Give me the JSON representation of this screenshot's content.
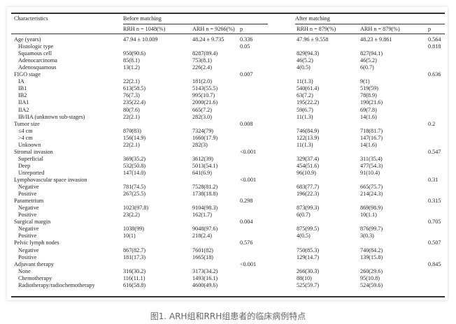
{
  "table": {
    "headers": {
      "characteristics": "Characteristics",
      "before": "Before matching",
      "after": "After matching",
      "sub": [
        "RRH n = 1048(%)",
        "ARH n = 9266(%)",
        "p",
        "RRH n = 879(%)",
        "ARH n = 879(%)",
        "p"
      ]
    },
    "rows": [
      {
        "label": "Age (years)",
        "level": 0,
        "v": [
          "47.94 ± 10.009",
          "48.24 ± 9.735",
          "0.336",
          "47.96 ± 9.558",
          "48.23 ± 9.861",
          "0.564"
        ]
      },
      {
        "label": "Histologic type",
        "level": 1,
        "v": [
          "",
          "",
          "0.05",
          "",
          "",
          "0.818"
        ]
      },
      {
        "label": "Squamous cell",
        "level": 1,
        "v": [
          "950(90.6)",
          "8287(89.4)",
          "",
          "829(94.3)",
          "827(94.1)",
          ""
        ]
      },
      {
        "label": "Adenocarcinoma",
        "level": 1,
        "v": [
          "85(8.1)",
          "753(8.1)",
          "",
          "46(5.2)",
          "46(5.2)",
          ""
        ]
      },
      {
        "label": "Adenosquamous",
        "level": 1,
        "v": [
          "13(1.2)",
          "226(2.4)",
          "",
          "4(0.5)",
          "6(0.7)",
          ""
        ]
      },
      {
        "label": "FIGO stage",
        "level": 0,
        "v": [
          "",
          "",
          "0.007",
          "",
          "",
          "0.636"
        ]
      },
      {
        "label": "IA",
        "level": 1,
        "v": [
          "22(2.1)",
          "181(2.0)",
          "",
          "11(1.3)",
          "9(1)",
          ""
        ]
      },
      {
        "label": "IB1",
        "level": 1,
        "v": [
          "613(58.5)",
          "5143(55.5)",
          "",
          "540(61.4)",
          "519(59)",
          ""
        ]
      },
      {
        "label": "IB2",
        "level": 1,
        "v": [
          "76(7.3)",
          "995(10.7)",
          "",
          "63(7.2)",
          "78(8.9)",
          ""
        ]
      },
      {
        "label": "IIA1",
        "level": 1,
        "v": [
          "235(22.4)",
          "2000(21.6)",
          "",
          "195(22.2)",
          "190(21.6)",
          ""
        ]
      },
      {
        "label": "IIA2",
        "level": 1,
        "v": [
          "80(7.6)",
          "665(7.2)",
          "",
          "59(6.7)",
          "69(7.8)",
          ""
        ]
      },
      {
        "label": "IB/IIA (unknown sub-stages)",
        "level": 1,
        "v": [
          "22(2.1)",
          "282(3.0)",
          "",
          "11(1.3)",
          "14(1.6)",
          ""
        ]
      },
      {
        "label": "Tumor size",
        "level": 0,
        "v": [
          "",
          "",
          "0.008",
          "",
          "",
          "0.2"
        ]
      },
      {
        "label": "≤4 cm",
        "level": 1,
        "v": [
          "870(83)",
          "7324(79)",
          "",
          "746(84.9)",
          "718(81.7)",
          ""
        ]
      },
      {
        "label": ">4 cm",
        "level": 1,
        "v": [
          "156(14.9)",
          "1660(17.9)",
          "",
          "122(13.9)",
          "147(16.7)",
          ""
        ]
      },
      {
        "label": "Unknown",
        "level": 1,
        "v": [
          "22(2.1)",
          "282(3)",
          "",
          "11(1.3)",
          "14(1.6)",
          ""
        ]
      },
      {
        "label": "Stromal invasion",
        "level": 0,
        "v": [
          "",
          "",
          "<0.001",
          "",
          "",
          "0.547"
        ]
      },
      {
        "label": "Superficial",
        "level": 1,
        "v": [
          "369(35.2)",
          "3612(39)",
          "",
          "329(37.4)",
          "311(35.4)",
          ""
        ]
      },
      {
        "label": "Deep",
        "level": 1,
        "v": [
          "532(50.8)",
          "5013(54.1)",
          "",
          "454(51.6)",
          "477(54.3)",
          ""
        ]
      },
      {
        "label": "Unreported",
        "level": 1,
        "v": [
          "147(14.0)",
          "641(6.9)",
          "",
          "96(10.9)",
          "91(10.4)",
          ""
        ]
      },
      {
        "label": "Lymphovascular space invasion",
        "level": 0,
        "v": [
          "",
          "",
          "<0.001",
          "",
          "",
          "0.31"
        ]
      },
      {
        "label": "Negative",
        "level": 1,
        "v": [
          "781(74.5)",
          "7528(81.2)",
          "",
          "683(77.7)",
          "665(75.7)",
          ""
        ]
      },
      {
        "label": "Positive",
        "level": 1,
        "v": [
          "267(25.5)",
          "1738(18.8)",
          "",
          "196(22.3)",
          "214(24.3)",
          ""
        ]
      },
      {
        "label": "Parametrium",
        "level": 0,
        "v": [
          "",
          "",
          "0.298",
          "",
          "",
          "0.315"
        ]
      },
      {
        "label": "Negative",
        "level": 1,
        "v": [
          "1023(97.8)",
          "9104(98.3)",
          "",
          "873(99.3)",
          "869(98.9)",
          ""
        ]
      },
      {
        "label": "Positive",
        "level": 1,
        "v": [
          "23(2.2)",
          "162(1.7)",
          "",
          "6(0.7)",
          "10(1.1)",
          ""
        ]
      },
      {
        "label": "Surgical margin",
        "level": 0,
        "v": [
          "",
          "",
          "0.004",
          "",
          "",
          "0.705"
        ]
      },
      {
        "label": "Negative",
        "level": 1,
        "v": [
          "1038(99)",
          "9048(97.6)",
          "",
          "875(99.5)",
          "876(99.7)",
          ""
        ]
      },
      {
        "label": "Positive",
        "level": 1,
        "v": [
          "10(1)",
          "218(2.4)",
          "",
          "4(0.5)",
          "3(0.3)",
          ""
        ]
      },
      {
        "label": "Pelvic lymph nodes",
        "level": 0,
        "v": [
          "",
          "",
          "0.576",
          "",
          "",
          "0.507"
        ]
      },
      {
        "label": "Negative",
        "level": 1,
        "v": [
          "867(82.7)",
          "7601(82)",
          "",
          "750(85.3)",
          "740(84.2)",
          ""
        ]
      },
      {
        "label": "Positive",
        "level": 1,
        "v": [
          "181(17.3)",
          "1665(18)",
          "",
          "129(14.7)",
          "139(15.8)",
          ""
        ]
      },
      {
        "label": "Adjuvant therapy",
        "level": 0,
        "v": [
          "",
          "",
          "<0.001",
          "",
          "",
          "0.845"
        ]
      },
      {
        "label": "None",
        "level": 1,
        "v": [
          "316(30.2)",
          "3173(34.2)",
          "",
          "266(30.3)",
          "260(29.6)",
          ""
        ]
      },
      {
        "label": "Chemotherapy",
        "level": 1,
        "v": [
          "116(11.1)",
          "1493(16.1)",
          "",
          "88(10)",
          "95(10.8)",
          ""
        ]
      },
      {
        "label": "Radiotherapy/radiochemotherapy",
        "level": 1,
        "v": [
          "616(58.8)",
          "4600(49.6)",
          "",
          "525(59.7)",
          "524(59.6)",
          ""
        ]
      }
    ]
  },
  "caption": "图1. ARH组和RRH组患者的临床病例特点"
}
